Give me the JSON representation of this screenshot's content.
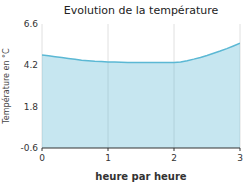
{
  "chart_data": {
    "type": "area",
    "title": "Evolution de la température",
    "xlabel": "heure par heure",
    "ylabel": "Température en °C",
    "color": "#5bb8d4",
    "x": [
      0.0,
      0.1,
      0.2,
      0.3,
      0.4,
      0.5,
      0.6,
      0.7,
      0.8,
      0.9,
      1.0,
      1.1,
      1.2,
      1.3,
      1.4,
      1.5,
      1.6,
      1.7,
      1.8,
      1.9,
      2.0,
      2.1,
      2.2,
      2.3,
      2.4,
      2.5,
      2.6,
      2.7,
      2.8,
      2.9,
      3.0
    ],
    "values": [
      4.8,
      4.75,
      4.7,
      4.65,
      4.6,
      4.55,
      4.5,
      4.47,
      4.44,
      4.42,
      4.4,
      4.39,
      4.38,
      4.37,
      4.36,
      4.36,
      4.36,
      4.36,
      4.36,
      4.36,
      4.36,
      4.4,
      4.47,
      4.56,
      4.66,
      4.77,
      4.9,
      5.03,
      5.17,
      5.32,
      5.48
    ],
    "xlim": [
      0,
      3
    ],
    "ylim": [
      -0.6,
      6.6
    ],
    "xticks": [
      0,
      1,
      2,
      3
    ],
    "yticks": [
      -0.6,
      1.8,
      4.2,
      6.6
    ],
    "grid": true
  }
}
